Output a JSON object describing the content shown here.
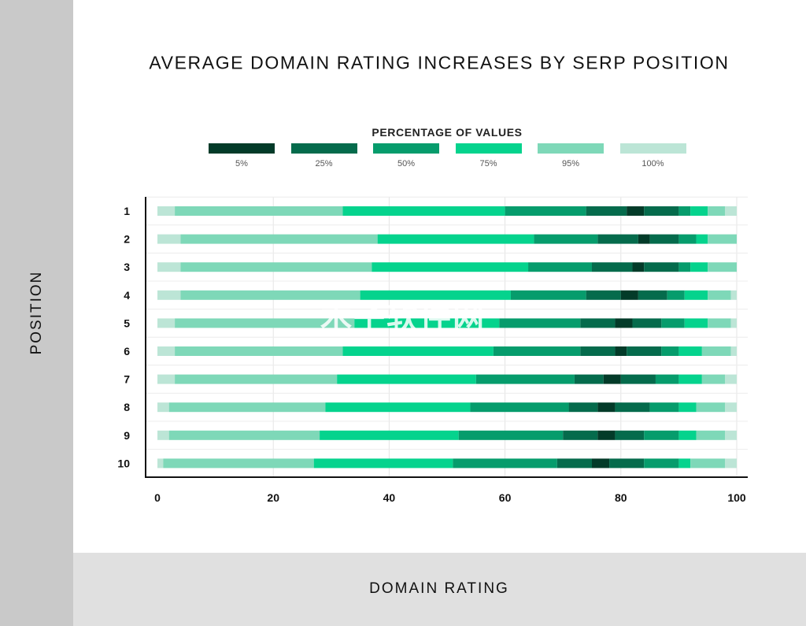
{
  "title": "AVERAGE DOMAIN RATING INCREASES BY SERP POSITION",
  "y_axis_label": "POSITION",
  "x_axis_label": "DOMAIN RATING",
  "watermark": "木子软件网",
  "legend": {
    "title": "PERCENTAGE OF VALUES",
    "items": [
      {
        "label": "5%",
        "color": "#033b29"
      },
      {
        "label": "25%",
        "color": "#056b4c"
      },
      {
        "label": "50%",
        "color": "#069c6c"
      },
      {
        "label": "75%",
        "color": "#05d38d"
      },
      {
        "label": "95%",
        "color": "#7ed8b8"
      },
      {
        "label": "100%",
        "color": "#bce5d6"
      }
    ]
  },
  "chart_data": {
    "type": "bar",
    "orientation": "horizontal",
    "subtype": "percentile-bands",
    "title": "AVERAGE DOMAIN RATING INCREASES BY SERP POSITION",
    "xlabel": "DOMAIN RATING",
    "ylabel": "POSITION",
    "xlim": [
      0,
      100
    ],
    "xticks": [
      0,
      20,
      40,
      60,
      80,
      100
    ],
    "grid": true,
    "legend_position": "top-center",
    "categories": [
      "1",
      "2",
      "3",
      "4",
      "5",
      "6",
      "7",
      "8",
      "9",
      "10"
    ],
    "colors": [
      "#033b29",
      "#056b4c",
      "#069c6c",
      "#05d38d",
      "#7ed8b8",
      "#bce5d6"
    ],
    "boundaries_description": "Each row lists band boundaries from left to right: lower 100%, lower 95%, lower 75%, lower 50%, lower 25%, lower 5%, upper 5%, upper 25%, upper 50%, upper 75%, upper 95%, upper 100%.",
    "rows": [
      {
        "position": "1",
        "boundaries": [
          0,
          3,
          32,
          60,
          74,
          81,
          84,
          90,
          92,
          95,
          98,
          100
        ]
      },
      {
        "position": "2",
        "boundaries": [
          0,
          4,
          38,
          65,
          76,
          83,
          85,
          90,
          93,
          95,
          100,
          100
        ]
      },
      {
        "position": "3",
        "boundaries": [
          0,
          4,
          37,
          64,
          75,
          82,
          84,
          90,
          92,
          95,
          100,
          100
        ]
      },
      {
        "position": "4",
        "boundaries": [
          0,
          4,
          35,
          61,
          74,
          80,
          83,
          88,
          91,
          95,
          99,
          100
        ]
      },
      {
        "position": "5",
        "boundaries": [
          0,
          3,
          34,
          59,
          73,
          79,
          82,
          87,
          91,
          95,
          99,
          100
        ]
      },
      {
        "position": "6",
        "boundaries": [
          0,
          3,
          32,
          58,
          73,
          79,
          81,
          87,
          90,
          94,
          99,
          100
        ]
      },
      {
        "position": "7",
        "boundaries": [
          0,
          3,
          31,
          55,
          72,
          77,
          80,
          86,
          90,
          94,
          98,
          100
        ]
      },
      {
        "position": "8",
        "boundaries": [
          0,
          2,
          29,
          54,
          71,
          76,
          79,
          85,
          90,
          93,
          98,
          100
        ]
      },
      {
        "position": "9",
        "boundaries": [
          0,
          2,
          28,
          52,
          70,
          76,
          79,
          84,
          90,
          93,
          98,
          100
        ]
      },
      {
        "position": "10",
        "boundaries": [
          0,
          1,
          27,
          51,
          69,
          75,
          78,
          84,
          90,
          92,
          98,
          100
        ]
      }
    ]
  }
}
